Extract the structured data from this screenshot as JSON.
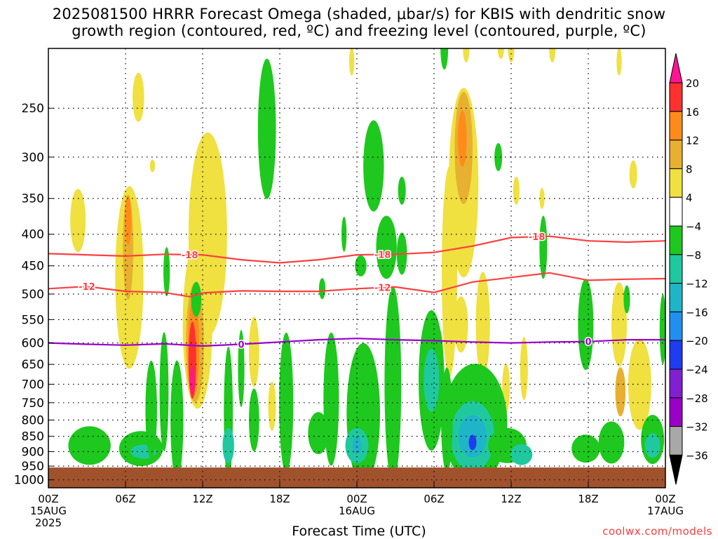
{
  "header": {
    "title_line1": "2025081500 HRRR Forecast Omega (shaded, μbar/s) for KBIS with dendritic snow",
    "title_line2": "growth region (contoured, red, ºC) and freezing level (contoured, purple, ºC)"
  },
  "footer": {
    "xlabel": "Forecast Time (UTC)",
    "credit": "coolwx.com/models"
  },
  "chart_data": {
    "type": "heatmap",
    "title": "2025081500 HRRR Forecast Omega (shaded, μbar/s) for KBIS with dendritic snow growth region (contoured, red, ºC) and freezing level (contoured, purple, ºC)",
    "xlabel": "Forecast Time (UTC)",
    "ylabel": "",
    "x_ticks": [
      {
        "hour": 0,
        "label": "00Z",
        "sub": "15AUG",
        "sub2": "2025"
      },
      {
        "hour": 6,
        "label": "06Z"
      },
      {
        "hour": 12,
        "label": "12Z"
      },
      {
        "hour": 18,
        "label": "18Z"
      },
      {
        "hour": 24,
        "label": "00Z",
        "sub": "16AUG"
      },
      {
        "hour": 30,
        "label": "06Z"
      },
      {
        "hour": 36,
        "label": "12Z"
      },
      {
        "hour": 42,
        "label": "18Z"
      },
      {
        "hour": 48,
        "label": "00Z",
        "sub": "17AUG"
      }
    ],
    "xlim": [
      0,
      48
    ],
    "y_ticks": [
      250,
      300,
      350,
      400,
      450,
      500,
      550,
      600,
      650,
      700,
      750,
      800,
      850,
      900,
      950,
      1000
    ],
    "ylim_hpa": [
      200,
      1030
    ],
    "y_scale": "log-pressure (inverted)",
    "ground_level_hpa": 955,
    "grid": true,
    "colorbar": {
      "labels": [
        "20",
        "16",
        "12",
        "8",
        "4",
        "−4",
        "−8",
        "−12",
        "−16",
        "−20",
        "−24",
        "−28",
        "−32",
        "−36"
      ],
      "colors": [
        "#ff1493",
        "#ff3030",
        "#ff8c1a",
        "#e8b030",
        "#f0e040",
        "#ffffff",
        "#1ec81e",
        "#20c8a0",
        "#20b4c8",
        "#2090f0",
        "#1e3cf0",
        "#8020d0",
        "#9a00c8",
        "#a8a8a8",
        "#000000"
      ]
    },
    "contours": [
      {
        "label": "-18",
        "color": "#ff4040",
        "points": [
          [
            0,
            430
          ],
          [
            6,
            434
          ],
          [
            9,
            431
          ],
          [
            12,
            432
          ],
          [
            15,
            440
          ],
          [
            18,
            445
          ],
          [
            21,
            440
          ],
          [
            24,
            432
          ],
          [
            27,
            431
          ],
          [
            30,
            428
          ],
          [
            33,
            418
          ],
          [
            36,
            405
          ],
          [
            39,
            403
          ],
          [
            42,
            410
          ],
          [
            45,
            412
          ],
          [
            48,
            410
          ]
        ]
      },
      {
        "label": "-12",
        "color": "#ff4040",
        "points": [
          [
            0,
            490
          ],
          [
            3,
            486
          ],
          [
            6,
            495
          ],
          [
            9,
            497
          ],
          [
            11,
            505
          ],
          [
            12,
            498
          ],
          [
            15,
            494
          ],
          [
            18,
            495
          ],
          [
            21,
            495
          ],
          [
            24,
            490
          ],
          [
            27,
            487
          ],
          [
            30,
            497
          ],
          [
            33,
            478
          ],
          [
            36,
            470
          ],
          [
            39,
            462
          ],
          [
            42,
            475
          ],
          [
            45,
            473
          ],
          [
            48,
            472
          ]
        ]
      },
      {
        "label": "0",
        "color": "#9900cc",
        "points": [
          [
            0,
            600
          ],
          [
            3,
            603
          ],
          [
            6,
            605
          ],
          [
            9,
            602
          ],
          [
            12,
            607
          ],
          [
            15,
            603
          ],
          [
            18,
            598
          ],
          [
            21,
            593
          ],
          [
            24,
            590
          ],
          [
            27,
            593
          ],
          [
            30,
            595
          ],
          [
            33,
            598
          ],
          [
            36,
            600
          ],
          [
            39,
            598
          ],
          [
            42,
            597
          ],
          [
            45,
            593
          ],
          [
            48,
            593
          ]
        ]
      }
    ],
    "omega_blobs_note": "Shaded omega pattern: yellow/orange/red (4 to 20 μbar/s) ascending-motion streaks near 06Z-08Z and 11Z-13Z 15AUG and 06Z-08Z 16AUG; green/teal/blue (-4 to -20 μbar/s) descending areas mostly below 600 hPa."
  }
}
